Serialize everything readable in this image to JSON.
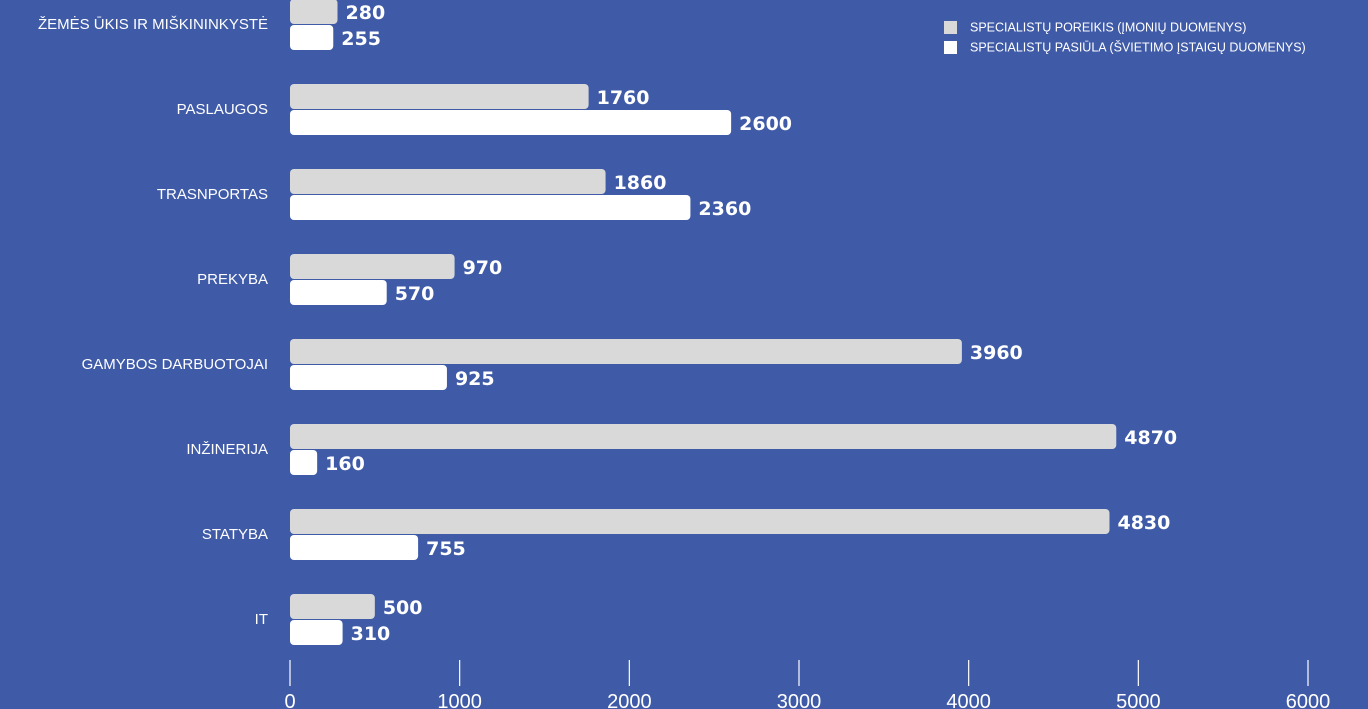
{
  "chart_data": {
    "type": "bar",
    "orientation": "horizontal",
    "categories": [
      "ŽEMĖS ŪKIS IR MIŠKININKYSTĖ",
      "PASLAUGOS",
      "TRASNPORTAS",
      "PREKYBA",
      "GAMYBOS DARBUOTOJAI",
      "INŽINERIJA",
      "STATYBA",
      "IT"
    ],
    "series": [
      {
        "name": "SPECIALISTŲ POREIKIS (ĮMONIŲ DUOMENYS)",
        "color": "#d9d9d9",
        "values": [
          280,
          1760,
          1860,
          970,
          3960,
          4870,
          4830,
          500
        ]
      },
      {
        "name": "SPECIALISTŲ PASIŪLA (ŠVIETIMO ĮSTAIGŲ DUOMENYS)",
        "color": "#ffffff",
        "values": [
          255,
          2600,
          2360,
          570,
          925,
          160,
          755,
          310
        ]
      }
    ],
    "xlim": [
      0,
      6000
    ],
    "xticks": [
      0,
      1000,
      2000,
      3000,
      4000,
      5000,
      6000
    ],
    "legend_position": "top-right",
    "background": "#3f5aa7",
    "grid": false
  }
}
